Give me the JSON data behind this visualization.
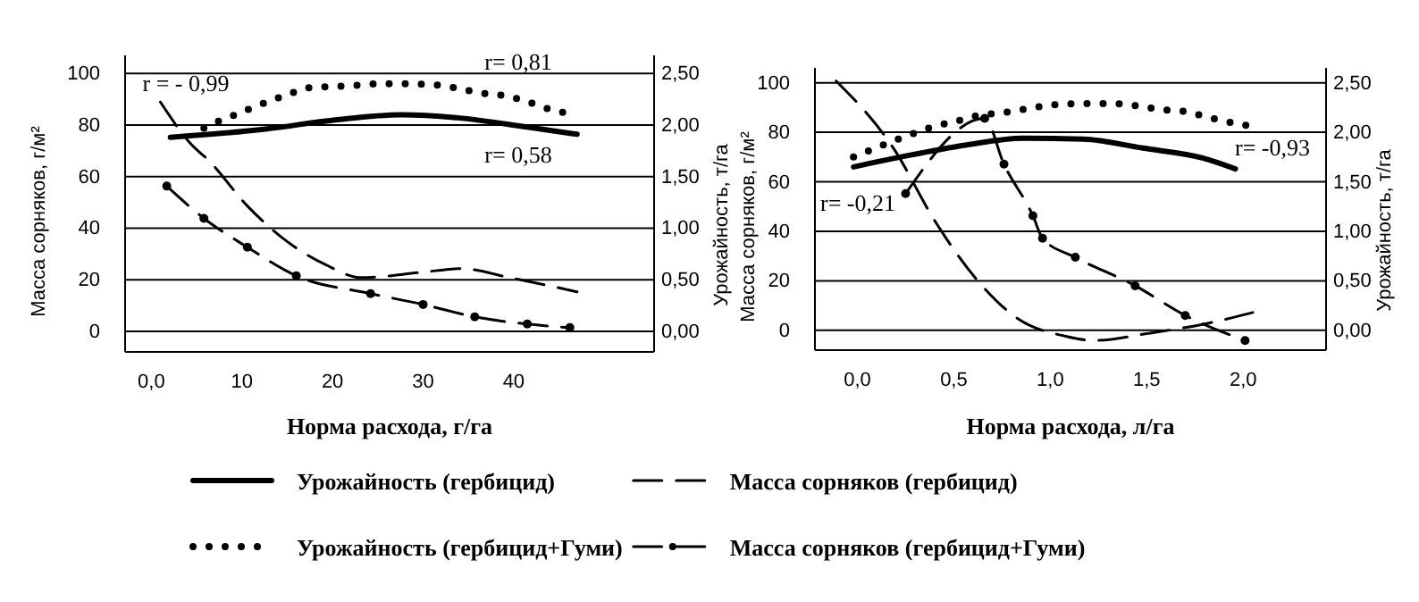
{
  "chart_data": [
    {
      "type": "line",
      "xlabel": "Норма расхода, г/га",
      "ylabel": "Масса сорняков, г/м²",
      "y2label": "Урожайность, т/га",
      "legend": "bottom",
      "grid": "y",
      "xlim": [
        -2.9,
        55.5
      ],
      "xticks": [
        {
          "value": 0,
          "label": "0,0"
        },
        10,
        20,
        30,
        40
      ],
      "ylim": [
        -8,
        107
      ],
      "yticks": [
        0,
        20,
        40,
        60,
        80,
        100
      ],
      "y2lim": [
        -0.2,
        2.675
      ],
      "y2ticks": [
        {
          "value": 0,
          "label": "0,00"
        },
        {
          "value": 0.5,
          "label": "0,50"
        },
        {
          "value": 1,
          "label": "1,00"
        },
        {
          "value": 1.5,
          "label": "1,50"
        },
        {
          "value": 2,
          "label": "2,00"
        },
        {
          "value": 2.5,
          "label": "2,50"
        }
      ],
      "series": [
        {
          "name": "Урожайность (гербицид)",
          "color": "#000000",
          "axis": "y2",
          "line_style": "solid",
          "x": [
            2.1,
            12.6,
            20.3,
            27.6,
            33.8,
            41.5,
            47
          ],
          "values": [
            1.88,
            1.96,
            2.05,
            2.1,
            2.07,
            1.98,
            1.91
          ]
        },
        {
          "name": "Масса сорняков (гербицид)",
          "color": "#000000",
          "axis": "y",
          "line_style": "dashed",
          "x": [
            1,
            4.3,
            6.4,
            10.6,
            14.5,
            19.3,
            23.2,
            29.9,
            34.2,
            39.6,
            47
          ],
          "values": [
            88.9,
            72.9,
            66,
            48.6,
            36.1,
            25.7,
            20.8,
            22.9,
            24.3,
            20.8,
            15.3
          ]
        },
        {
          "name": "Урожайность (гербицид+Гуми)",
          "color": "#000000",
          "axis": "y2",
          "line_style": "dotted",
          "x": [
            5.8,
            7.5,
            9.3,
            11.2,
            13.3,
            15.5,
            17.2,
            19.3,
            22,
            25.1,
            27.8,
            31.1,
            33.6,
            36.3,
            38.6,
            41.4,
            43.7,
            45.2,
            46.8
          ],
          "values": [
            1.97,
            2.04,
            2.1,
            2.17,
            2.24,
            2.31,
            2.36,
            2.37,
            2.38,
            2.4,
            2.4,
            2.39,
            2.36,
            2.31,
            2.29,
            2.23,
            2.16,
            2.13,
            2.05
          ]
        },
        {
          "name": "Масса сорняков (гербицид+Гуми)",
          "color": "#000000",
          "axis": "y",
          "line_style": "dashed",
          "marker": "circle",
          "x": [
            1.7,
            5.8,
            10.6,
            16,
            24.2,
            30,
            35.7,
            41.5,
            46.2
          ],
          "values": [
            56.3,
            43.8,
            32.6,
            21.5,
            14.6,
            10.4,
            5.6,
            2.8,
            1.4
          ]
        }
      ],
      "annotations": [
        "r = - 0,99",
        "r= 0,81",
        "r= 0,58"
      ]
    },
    {
      "type": "line",
      "xlabel": "Норма расхода, л/га",
      "ylabel": "Масса сорняков, г/м²",
      "y2label": "Урожайность, т/га",
      "grid": "y",
      "xlim": [
        -0.22,
        2.43
      ],
      "xticks": [
        {
          "value": 0,
          "label": "0,0"
        },
        {
          "value": 0.5,
          "label": "0,5"
        },
        {
          "value": 1,
          "label": "1,0"
        },
        {
          "value": 1.5,
          "label": "1,5"
        },
        {
          "value": 2,
          "label": "2,0"
        }
      ],
      "ylim": [
        -8,
        106
      ],
      "yticks": [
        0,
        20,
        40,
        60,
        80,
        100
      ],
      "y2lim": [
        -0.2,
        2.65
      ],
      "y2ticks": [
        {
          "value": 0,
          "label": "0,00"
        },
        {
          "value": 0.5,
          "label": "0,50"
        },
        {
          "value": 1,
          "label": "1,00"
        },
        {
          "value": 1.5,
          "label": "1,50"
        },
        {
          "value": 2,
          "label": "2,00"
        },
        {
          "value": 2.5,
          "label": "2,50"
        }
      ],
      "series": [
        {
          "color": "#000000",
          "axis": "y2",
          "line_style": "solid",
          "x": [
            -0.02,
            0.25,
            0.56,
            0.86,
            1.17,
            1.48,
            1.79,
            1.96
          ],
          "values": [
            1.65,
            1.76,
            1.87,
            1.94,
            1.93,
            1.84,
            1.74,
            1.63
          ]
        },
        {
          "color": "#000000",
          "axis": "y",
          "line_style": "dashed",
          "x": [
            -0.11,
            0.19,
            0.4,
            0.62,
            0.83,
            1.08,
            1.23,
            1.51,
            1.79,
            2.05
          ],
          "values": [
            100.7,
            73.2,
            44.4,
            20.4,
            4.8,
            -2.4,
            -4.1,
            -1.2,
            2.4,
            7.2
          ]
        },
        {
          "color": "#000000",
          "axis": "y2",
          "line_style": "dotted",
          "x": [
            -0.02,
            0.08,
            0.21,
            0.31,
            0.4,
            0.51,
            0.63,
            0.76,
            0.89,
            1.03,
            1.17,
            1.31,
            1.44,
            1.57,
            1.7,
            1.82,
            1.91,
            2.04
          ],
          "values": [
            1.75,
            1.83,
            1.93,
            2,
            2.06,
            2.11,
            2.17,
            2.2,
            2.24,
            2.28,
            2.29,
            2.29,
            2.27,
            2.23,
            2.21,
            2.15,
            2.11,
            2.06
          ]
        },
        {
          "color": "#000000",
          "axis": "y",
          "line_style": "dashed",
          "marker": "circle",
          "x": [
            0.25,
            0.66,
            0.76,
            0.91,
            0.96,
            1.13,
            1.44,
            1.7,
            2.01
          ],
          "values": [
            55.2,
            85.6,
            67.1,
            46.3,
            37.2,
            29.5,
            18,
            6,
            -4.1
          ]
        }
      ],
      "annotations": [
        "r= -0,93",
        "r= -0,21"
      ]
    }
  ]
}
